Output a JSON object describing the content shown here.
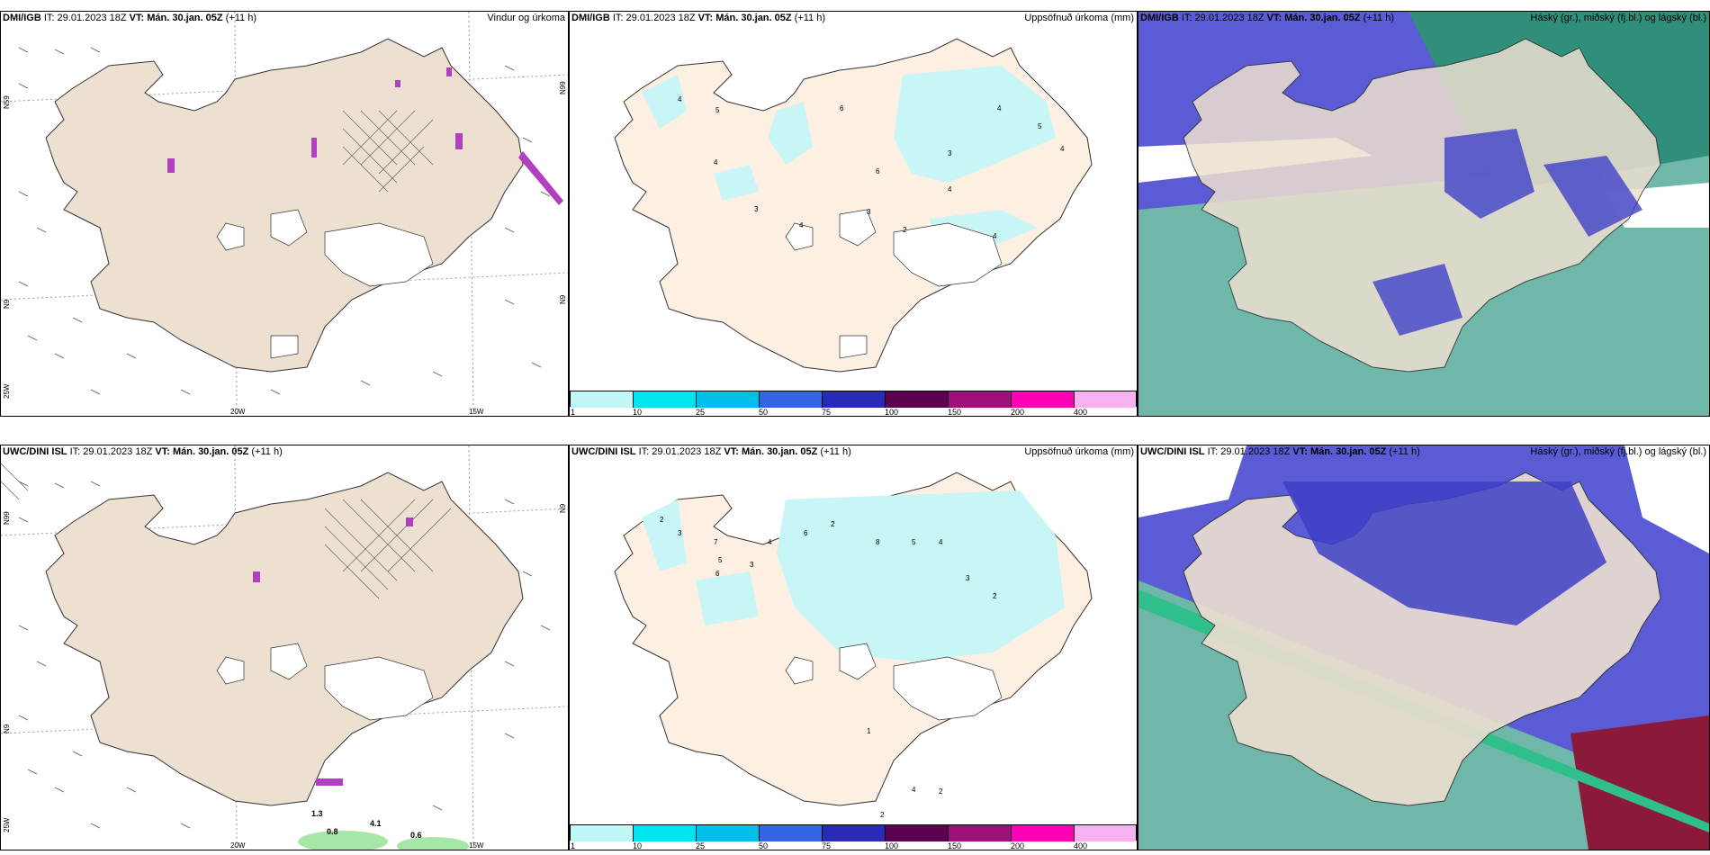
{
  "panels": [
    {
      "model": "DMI/IGB",
      "it_label": "IT:",
      "it_value": "29.01.2023 18Z",
      "vt_label": "VT:",
      "vt_value": "Mán. 30.jan. 05Z",
      "lead": "(+11 h)",
      "product": "Vindur og úrkoma",
      "axis": {
        "lon_left": "20W",
        "lon_right": "15W",
        "lat_top": "N59",
        "lat_bottom": "N9",
        "corner": "25W",
        "lat_right": "N99",
        "lat_right2": "N9"
      }
    },
    {
      "model": "DMI/IGB",
      "it_label": "IT:",
      "it_value": "29.01.2023 18Z",
      "vt_label": "VT:",
      "vt_value": "Mán. 30.jan. 05Z",
      "lead": "(+11 h)",
      "product": "Uppsöfnuð úrkoma (mm)",
      "accum_labels": [
        "4",
        "5",
        "4",
        "6",
        "4",
        "3",
        "4",
        "5",
        "6",
        "4",
        "3",
        "4",
        "4",
        "2",
        "3"
      ]
    },
    {
      "model": "DMI/IGB",
      "it_label": "IT:",
      "it_value": "29.01.2023 18Z",
      "vt_label": "VT:",
      "vt_value": "Mán. 30.jan. 05Z",
      "lead": "(+11 h)",
      "product": "Háský (gr.), miðský (fj.bl.) og lágský (bl.)"
    },
    {
      "model": "UWC/DINI ISL",
      "it_label": "IT:",
      "it_value": "29.01.2023 18Z",
      "vt_label": "VT:",
      "vt_value": "Mán. 30.jan. 05Z",
      "lead": "(+11 h)",
      "product": "Vindur og úrkoma",
      "axis": {
        "lon_left": "20W",
        "lon_right": "15W",
        "lat_top": "N99",
        "lat_bottom": "N9",
        "corner": "25W",
        "lat_right": "N9",
        "lat_right2": "N9"
      },
      "precip_labels": [
        "1.3",
        "4.1",
        "0.8",
        "0.6"
      ]
    },
    {
      "model": "UWC/DINI ISL",
      "it_label": "IT:",
      "it_value": "29.01.2023 18Z",
      "vt_label": "VT:",
      "vt_value": "Mán. 30.jan. 05Z",
      "lead": "(+11 h)",
      "product": "Uppsöfnuð úrkoma (mm)",
      "accum_labels": [
        "2",
        "3",
        "7",
        "5",
        "6",
        "3",
        "4",
        "6",
        "2",
        "8",
        "5",
        "4",
        "3",
        "2",
        "1",
        "4",
        "2",
        "2"
      ]
    },
    {
      "model": "UWC/DINI ISL",
      "it_label": "IT:",
      "it_value": "29.01.2023 18Z",
      "vt_label": "VT:",
      "vt_value": "Mán. 30.jan. 05Z",
      "lead": "(+11 h)",
      "product": "Háský (gr.), miðský (fj.bl.) og lágský (bl.)"
    }
  ],
  "colorbar": {
    "labels": [
      "1",
      "10",
      "25",
      "50",
      "75",
      "100",
      "150",
      "200",
      "400"
    ],
    "colors": [
      "#bff7f7",
      "#00e5ef",
      "#00bfe8",
      "#3366e6",
      "#2a2ab8",
      "#5c0050",
      "#a0107a",
      "#ff00b4",
      "#f7b0f0"
    ]
  },
  "map_colors": {
    "land": "#ede0d0",
    "land_accum": "#fdefe2",
    "precip_light": "#c8f5f5",
    "cloud_high": "#2fbf8a",
    "cloud_mid": "#5b5bd6",
    "cloud_low": "#6fb7a8",
    "cloud_red": "#8b1a3a"
  }
}
